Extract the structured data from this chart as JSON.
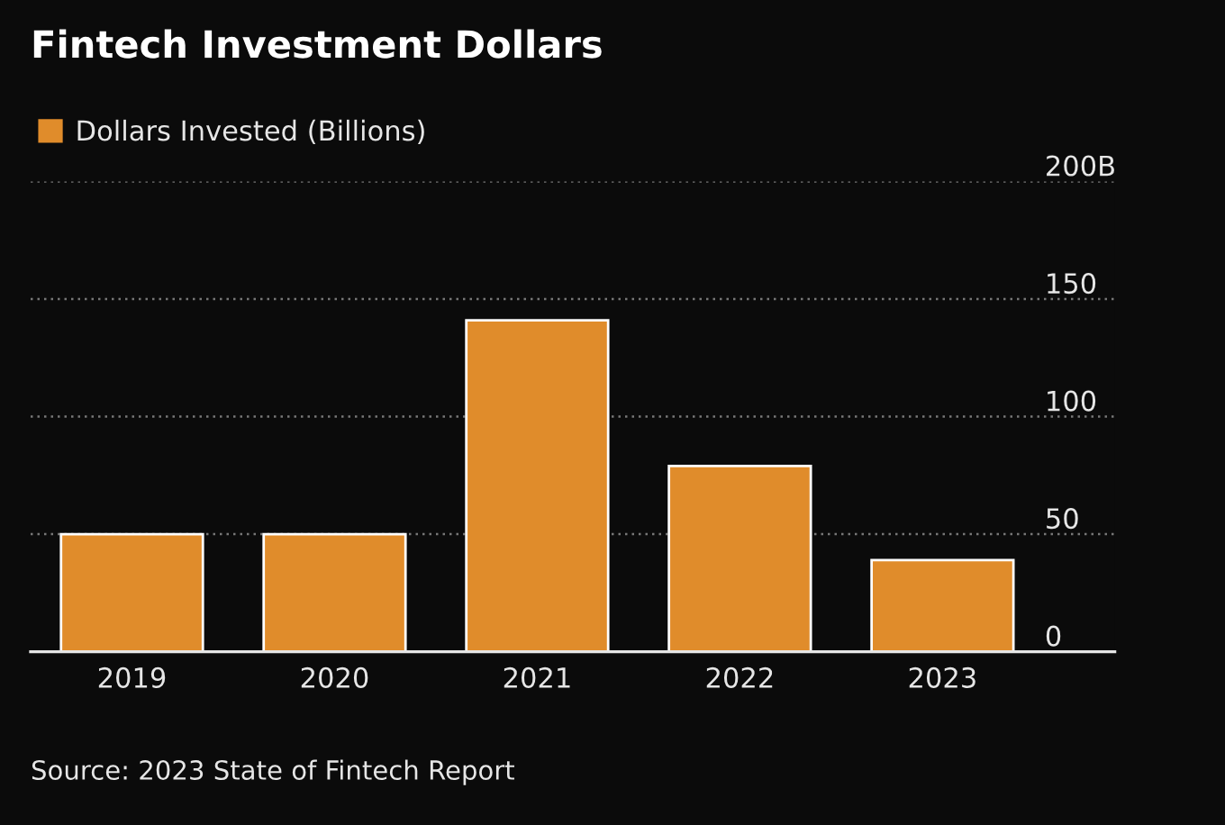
{
  "chart_data": {
    "type": "bar",
    "title": "Fintech Investment Dollars",
    "categories": [
      "2019",
      "2020",
      "2021",
      "2022",
      "2023"
    ],
    "series": [
      {
        "name": "Dollars Invested (Billions)",
        "color": "#e08c2b",
        "values": [
          50,
          50,
          141,
          79,
          39
        ]
      }
    ],
    "ylim": [
      0,
      200
    ],
    "yticks": [
      0,
      50,
      100,
      {
        "value": 150,
        "label": "150"
      },
      {
        "value": 200,
        "label": "200B"
      }
    ],
    "grid": "y",
    "legend": "top left",
    "annotations": [
      "Source: 2023 State of Fintech Report"
    ]
  }
}
